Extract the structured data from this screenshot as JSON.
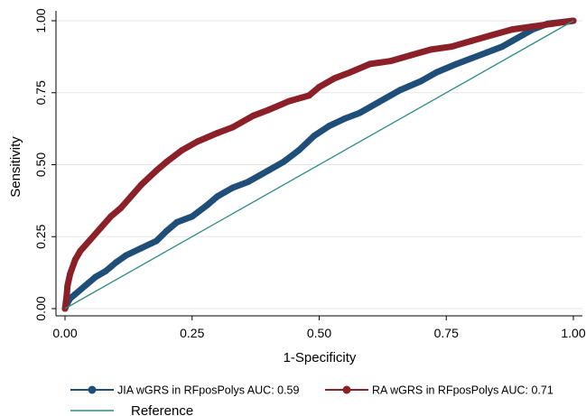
{
  "chart_data": {
    "type": "line",
    "xlabel": "1-Specificity",
    "ylabel": "Sensitivity",
    "xlim": [
      0,
      1
    ],
    "ylim": [
      0,
      1
    ],
    "x_ticks": [
      "0.00",
      "0.25",
      "0.50",
      "0.75",
      "1.00"
    ],
    "y_ticks": [
      "0.00",
      "0.25",
      "0.50",
      "0.75",
      "1.00"
    ],
    "grid": "horizontal",
    "legend_position": "bottom",
    "series": [
      {
        "name": "JIA wGRS in RFposPolys AUC: 0.59",
        "color": "#1f4e79",
        "marker": "circle",
        "points": [
          [
            0,
            0
          ],
          [
            0.005,
            0.02
          ],
          [
            0.01,
            0.035
          ],
          [
            0.02,
            0.05
          ],
          [
            0.04,
            0.08
          ],
          [
            0.06,
            0.11
          ],
          [
            0.08,
            0.13
          ],
          [
            0.1,
            0.16
          ],
          [
            0.12,
            0.185
          ],
          [
            0.15,
            0.21
          ],
          [
            0.18,
            0.235
          ],
          [
            0.2,
            0.27
          ],
          [
            0.22,
            0.3
          ],
          [
            0.25,
            0.32
          ],
          [
            0.28,
            0.36
          ],
          [
            0.3,
            0.39
          ],
          [
            0.33,
            0.42
          ],
          [
            0.36,
            0.44
          ],
          [
            0.4,
            0.48
          ],
          [
            0.43,
            0.51
          ],
          [
            0.46,
            0.55
          ],
          [
            0.49,
            0.6
          ],
          [
            0.52,
            0.635
          ],
          [
            0.55,
            0.66
          ],
          [
            0.58,
            0.68
          ],
          [
            0.6,
            0.7
          ],
          [
            0.63,
            0.73
          ],
          [
            0.66,
            0.76
          ],
          [
            0.7,
            0.79
          ],
          [
            0.73,
            0.82
          ],
          [
            0.77,
            0.85
          ],
          [
            0.8,
            0.87
          ],
          [
            0.83,
            0.89
          ],
          [
            0.86,
            0.91
          ],
          [
            0.88,
            0.93
          ],
          [
            0.9,
            0.95
          ],
          [
            0.92,
            0.97
          ],
          [
            0.95,
            0.99
          ],
          [
            1.0,
            1.0
          ]
        ]
      },
      {
        "name": "RA wGRS in RFposPolys AUC: 0.71",
        "color": "#8b2028",
        "marker": "circle",
        "points": [
          [
            0,
            0
          ],
          [
            0.003,
            0.04
          ],
          [
            0.005,
            0.08
          ],
          [
            0.01,
            0.12
          ],
          [
            0.02,
            0.17
          ],
          [
            0.03,
            0.2
          ],
          [
            0.05,
            0.24
          ],
          [
            0.07,
            0.28
          ],
          [
            0.09,
            0.32
          ],
          [
            0.11,
            0.35
          ],
          [
            0.13,
            0.39
          ],
          [
            0.15,
            0.43
          ],
          [
            0.18,
            0.48
          ],
          [
            0.2,
            0.51
          ],
          [
            0.23,
            0.55
          ],
          [
            0.26,
            0.58
          ],
          [
            0.3,
            0.61
          ],
          [
            0.33,
            0.63
          ],
          [
            0.37,
            0.67
          ],
          [
            0.4,
            0.69
          ],
          [
            0.44,
            0.72
          ],
          [
            0.48,
            0.74
          ],
          [
            0.5,
            0.77
          ],
          [
            0.53,
            0.8
          ],
          [
            0.56,
            0.82
          ],
          [
            0.6,
            0.85
          ],
          [
            0.64,
            0.86
          ],
          [
            0.68,
            0.88
          ],
          [
            0.72,
            0.9
          ],
          [
            0.76,
            0.91
          ],
          [
            0.8,
            0.93
          ],
          [
            0.84,
            0.95
          ],
          [
            0.88,
            0.97
          ],
          [
            0.92,
            0.98
          ],
          [
            0.96,
            0.99
          ],
          [
            1.0,
            1.0
          ]
        ]
      },
      {
        "name": "Reference",
        "color": "#2e8b82",
        "marker": "none",
        "points": [
          [
            0,
            0
          ],
          [
            1,
            1
          ]
        ]
      }
    ]
  }
}
